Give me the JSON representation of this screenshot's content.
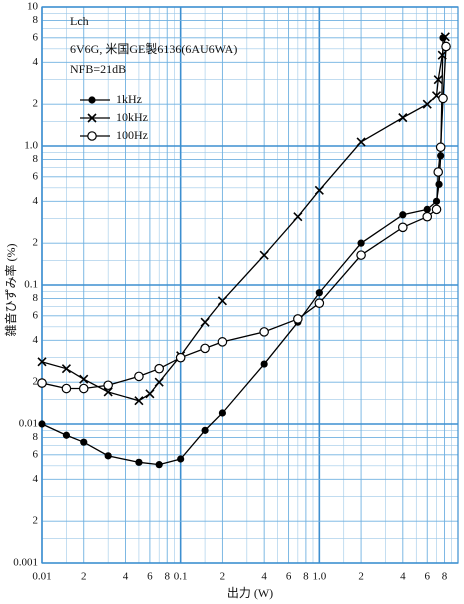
{
  "chart_data": {
    "type": "line",
    "notes": [
      "Lch",
      "6V6G, 米国GE製6136(6AU6WA)",
      "NFB=21dB"
    ],
    "xlabel": "出力 (W)",
    "ylabel": "雑音ひずみ率 (%)",
    "xscale": "log",
    "yscale": "log",
    "grid": true,
    "legend": "upper left",
    "xlim": [
      0.01,
      10
    ],
    "ylim": [
      0.001,
      10
    ],
    "xticks": [
      0.01,
      {
        "value": 0.02,
        "label": "2"
      },
      {
        "value": 0.04,
        "label": "4"
      },
      {
        "value": 0.06,
        "label": "6"
      },
      {
        "value": 0.08,
        "label": "8"
      },
      0.1,
      {
        "value": 0.2,
        "label": "2"
      },
      {
        "value": 0.4,
        "label": "4"
      },
      {
        "value": 0.6,
        "label": "6"
      },
      {
        "value": 0.8,
        "label": "8"
      },
      {
        "value": 1,
        "label": "1.0"
      },
      2,
      4,
      6,
      8
    ],
    "yticks": [
      0.001,
      {
        "value": 0.002,
        "label": "2"
      },
      {
        "value": 0.004,
        "label": "4"
      },
      {
        "value": 0.006,
        "label": "6"
      },
      {
        "value": 0.008,
        "label": "8"
      },
      0.01,
      {
        "value": 0.02,
        "label": "2"
      },
      {
        "value": 0.04,
        "label": "4"
      },
      {
        "value": 0.06,
        "label": "6"
      },
      {
        "value": 0.08,
        "label": "8"
      },
      0.1,
      {
        "value": 0.2,
        "label": "2"
      },
      {
        "value": 0.4,
        "label": "4"
      },
      {
        "value": 0.6,
        "label": "6"
      },
      {
        "value": 0.8,
        "label": "8"
      },
      {
        "value": 1,
        "label": "1.0"
      },
      2,
      4,
      6,
      8,
      10
    ],
    "minor_xticks": [
      0.015,
      0.03,
      0.05,
      0.07,
      0.09,
      0.15,
      0.3,
      0.5,
      0.7,
      0.9,
      1.5,
      3,
      5,
      7,
      9
    ],
    "minor_yticks": [
      0.0015,
      0.003,
      0.005,
      0.007,
      0.009,
      0.015,
      0.03,
      0.05,
      0.07,
      0.09,
      0.15,
      0.3,
      0.5,
      0.7,
      0.9,
      1.5,
      3,
      5,
      7,
      9
    ],
    "series": [
      {
        "name": "1kHz",
        "marker": "filled-circle",
        "color": "#000000",
        "x": [
          0.01,
          0.015,
          0.02,
          0.03,
          0.05,
          0.07,
          0.1,
          0.15,
          0.2,
          0.4,
          0.7,
          1,
          2,
          4,
          6,
          7,
          7.3,
          7.5,
          7.8
        ],
        "values": [
          0.01,
          0.0083,
          0.0074,
          0.0059,
          0.0053,
          0.0051,
          0.0056,
          0.009,
          0.012,
          0.027,
          0.054,
          0.088,
          0.2,
          0.32,
          0.35,
          0.4,
          0.53,
          0.85,
          6.0
        ]
      },
      {
        "name": "10kHz",
        "marker": "cross",
        "color": "#000000",
        "x": [
          0.01,
          0.015,
          0.02,
          0.03,
          0.05,
          0.06,
          0.07,
          0.1,
          0.15,
          0.2,
          0.4,
          0.7,
          1,
          2,
          4,
          6,
          7,
          7.2,
          7.7,
          8.1
        ],
        "values": [
          0.028,
          0.025,
          0.021,
          0.017,
          0.0147,
          0.0165,
          0.02,
          0.031,
          0.054,
          0.077,
          0.164,
          0.31,
          0.48,
          1.07,
          1.6,
          2.0,
          2.3,
          3.0,
          4.5,
          6.1
        ]
      },
      {
        "name": "100Hz",
        "marker": "open-circle",
        "color": "#000000",
        "x": [
          0.01,
          0.015,
          0.02,
          0.03,
          0.05,
          0.07,
          0.1,
          0.15,
          0.2,
          0.4,
          0.7,
          1,
          2,
          4,
          6,
          7,
          7.2,
          7.5,
          7.8,
          8.2
        ],
        "values": [
          0.0197,
          0.018,
          0.018,
          0.019,
          0.022,
          0.025,
          0.03,
          0.035,
          0.039,
          0.046,
          0.057,
          0.074,
          0.164,
          0.26,
          0.31,
          0.35,
          0.65,
          0.98,
          2.2,
          5.2
        ]
      }
    ]
  }
}
